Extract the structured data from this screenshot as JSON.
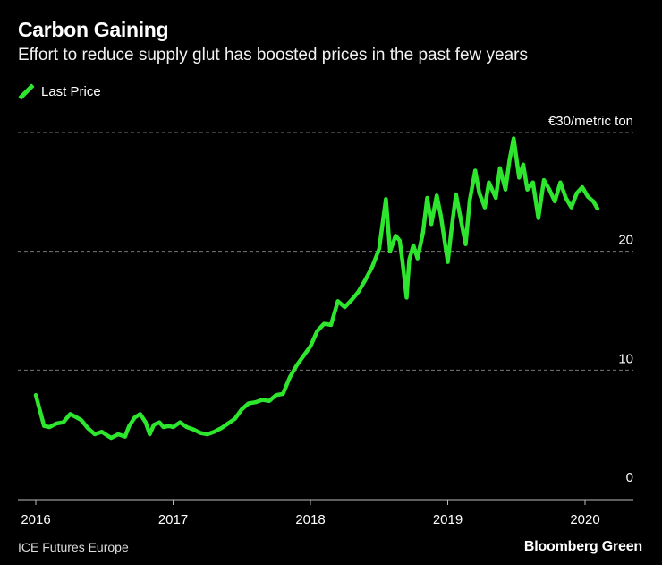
{
  "header": {
    "title": "Carbon Gaining",
    "subtitle": "Effort to reduce supply glut has boosted prices in the past few years"
  },
  "legend": {
    "label": "Last Price"
  },
  "footer": {
    "source": "ICE Futures Europe",
    "brand": "Bloomberg Green"
  },
  "colors": {
    "series": "#2ee62e",
    "grid": "#777777",
    "text": "#ffffff",
    "background": "#000000"
  },
  "chart_data": {
    "type": "line",
    "title": "Carbon Gaining",
    "subtitle": "Effort to reduce supply glut has boosted prices in the past few years",
    "xlabel": "",
    "ylabel": "€/metric ton",
    "xlim": [
      2016.0,
      2020.33
    ],
    "ylim": [
      0,
      30
    ],
    "y_ticks": [
      0,
      10,
      20,
      30
    ],
    "y_tick_labels": [
      "0",
      "10",
      "20",
      "€30/metric ton"
    ],
    "x_ticks": [
      2016,
      2017,
      2018,
      2019,
      2020
    ],
    "x_tick_labels": [
      "2016",
      "2017",
      "2018",
      "2019",
      "2020"
    ],
    "grid": true,
    "legend_position": "top-left",
    "series": [
      {
        "name": "Last Price",
        "x": [
          2016.0,
          2016.03,
          2016.06,
          2016.1,
          2016.15,
          2016.2,
          2016.25,
          2016.3,
          2016.33,
          2016.38,
          2016.43,
          2016.48,
          2016.52,
          2016.55,
          2016.6,
          2016.65,
          2016.68,
          2016.72,
          2016.76,
          2016.8,
          2016.83,
          2016.86,
          2016.9,
          2016.93,
          2016.97,
          2017.0,
          2017.05,
          2017.1,
          2017.15,
          2017.2,
          2017.25,
          2017.3,
          2017.35,
          2017.4,
          2017.45,
          2017.5,
          2017.55,
          2017.6,
          2017.65,
          2017.7,
          2017.75,
          2017.8,
          2017.85,
          2017.9,
          2017.95,
          2018.0,
          2018.05,
          2018.1,
          2018.15,
          2018.2,
          2018.25,
          2018.3,
          2018.35,
          2018.4,
          2018.45,
          2018.5,
          2018.55,
          2018.58,
          2018.62,
          2018.65,
          2018.67,
          2018.7,
          2018.72,
          2018.75,
          2018.78,
          2018.82,
          2018.85,
          2018.88,
          2018.92,
          2018.95,
          2019.0,
          2019.03,
          2019.06,
          2019.1,
          2019.13,
          2019.16,
          2019.2,
          2019.23,
          2019.27,
          2019.3,
          2019.35,
          2019.38,
          2019.42,
          2019.45,
          2019.48,
          2019.52,
          2019.55,
          2019.58,
          2019.62,
          2019.66,
          2019.7,
          2019.74,
          2019.78,
          2019.82,
          2019.86,
          2019.9,
          2019.94,
          2019.98,
          2020.02,
          2020.06,
          2020.09
        ],
        "values": [
          7.9,
          6.6,
          5.3,
          5.2,
          5.5,
          5.6,
          6.3,
          6.0,
          5.8,
          5.1,
          4.6,
          4.8,
          4.5,
          4.3,
          4.6,
          4.4,
          5.3,
          6.0,
          6.3,
          5.6,
          4.6,
          5.4,
          5.6,
          5.2,
          5.3,
          5.2,
          5.6,
          5.2,
          5.0,
          4.7,
          4.6,
          4.8,
          5.1,
          5.5,
          5.9,
          6.7,
          7.2,
          7.3,
          7.5,
          7.4,
          7.9,
          8.0,
          9.4,
          10.4,
          11.2,
          12.0,
          13.3,
          13.9,
          13.8,
          15.8,
          15.3,
          15.9,
          16.6,
          17.6,
          18.7,
          20.2,
          24.4,
          20.0,
          21.3,
          20.9,
          19.2,
          16.1,
          19.3,
          20.5,
          19.4,
          21.6,
          24.5,
          22.3,
          24.7,
          23.0,
          19.1,
          22.1,
          24.8,
          22.4,
          20.6,
          24.3,
          26.8,
          24.9,
          23.7,
          25.8,
          24.5,
          27.0,
          25.2,
          27.7,
          29.5,
          26.2,
          27.3,
          25.2,
          25.8,
          22.8,
          26.0,
          25.2,
          24.2,
          25.8,
          24.5,
          23.7,
          24.9,
          25.4,
          24.6,
          24.2,
          23.6
        ]
      }
    ]
  }
}
